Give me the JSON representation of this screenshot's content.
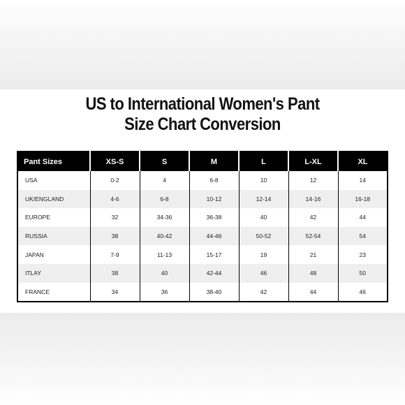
{
  "title": {
    "line1": "US to International Women's Pant",
    "line2": "Size Chart Conversion"
  },
  "table": {
    "headers": [
      "Pant Sizes",
      "XS-S",
      "S",
      "M",
      "L",
      "L-XL",
      "XL"
    ],
    "rows": [
      [
        "USA",
        "0-2",
        "4",
        "6-8",
        "10",
        "12",
        "14"
      ],
      [
        "UK/ENGLAND",
        "4-6",
        "6-8",
        "10-12",
        "12-14",
        "14-16",
        "16-18"
      ],
      [
        "EUROPE",
        "32",
        "34-36",
        "36-38",
        "40",
        "42",
        "44"
      ],
      [
        "RUSSIA",
        "38",
        "40-42",
        "44-46",
        "50-52",
        "52-54",
        "54"
      ],
      [
        "JAPAN",
        "7-9",
        "11-13",
        "15-17",
        "19",
        "21",
        "23"
      ],
      [
        "ITLAY",
        "38",
        "40",
        "42-44",
        "46",
        "48",
        "50"
      ],
      [
        "FRANCE",
        "34",
        "36",
        "38-40",
        "42",
        "44",
        "46"
      ]
    ]
  },
  "colors": {
    "header_bg": "#000000",
    "header_text": "#ffffff",
    "stripe": "#efefef"
  }
}
